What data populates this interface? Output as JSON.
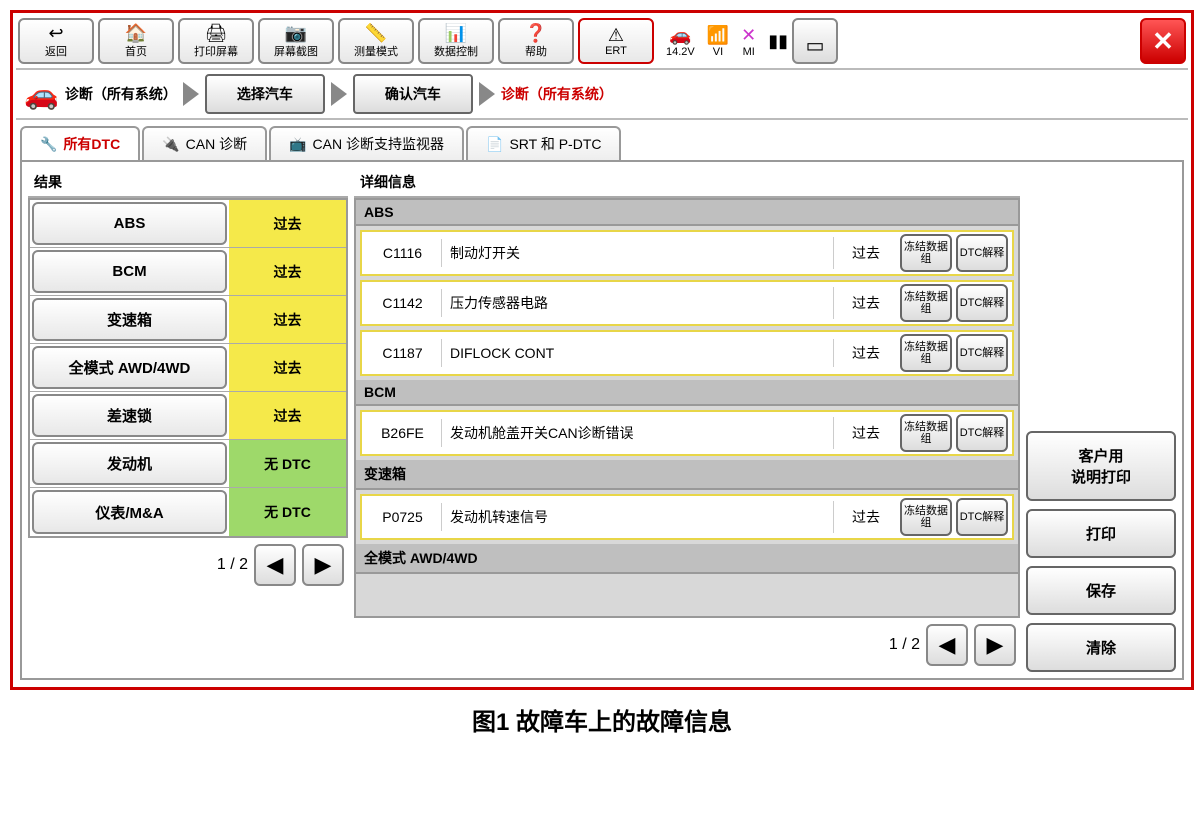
{
  "colors": {
    "frame_border": "#cc0000",
    "past_bg": "#f5e94a",
    "none_bg": "#9ed96a",
    "dtc_row_border": "#e8d648",
    "group_header_bg": "#bfbfbf"
  },
  "toolbar": [
    {
      "icon": "↩",
      "label": "返回",
      "name": "back-button"
    },
    {
      "icon": "🏠",
      "label": "首页",
      "name": "home-button"
    },
    {
      "icon": "🖨",
      "label": "打印屏幕",
      "name": "print-screen-button"
    },
    {
      "icon": "📷",
      "label": "屏幕截图",
      "name": "screenshot-button"
    },
    {
      "icon": "📏",
      "label": "测量模式",
      "name": "measure-mode-button"
    },
    {
      "icon": "📊",
      "label": "数据控制",
      "name": "data-control-button"
    },
    {
      "icon": "❓",
      "label": "帮助",
      "name": "help-button"
    },
    {
      "icon": "⚠",
      "label": "ERT",
      "name": "ert-button",
      "red": true
    }
  ],
  "status": {
    "voltage": "14.2V",
    "voltage_icon": "🚗",
    "vi_label": "VI",
    "vi_icon": "📶",
    "mi_label": "MI",
    "mi_icon": "✕",
    "mi_color": "#cc33cc",
    "battery_icon": "▮▮"
  },
  "breadcrumb": {
    "root": "诊断（所有系统）",
    "step1": "选择汽车",
    "step2": "确认汽车",
    "current": "诊断（所有系统）"
  },
  "tabs": [
    {
      "icon": "🔧",
      "label": "所有DTC",
      "active": true,
      "name": "tab-all-dtc"
    },
    {
      "icon": "🔌",
      "label": "CAN 诊断",
      "name": "tab-can-diag"
    },
    {
      "icon": "📺",
      "label": "CAN 诊断支持监视器",
      "name": "tab-can-monitor"
    },
    {
      "icon": "📄",
      "label": "SRT 和 P-DTC",
      "name": "tab-srt-pdtc"
    }
  ],
  "left_panel": {
    "title": "结果",
    "systems": [
      {
        "name": "ABS",
        "status": "过去",
        "cls": "st-past"
      },
      {
        "name": "BCM",
        "status": "过去",
        "cls": "st-past"
      },
      {
        "name": "变速箱",
        "status": "过去",
        "cls": "st-past"
      },
      {
        "name": "全模式 AWD/4WD",
        "status": "过去",
        "cls": "st-past"
      },
      {
        "name": "差速锁",
        "status": "过去",
        "cls": "st-past"
      },
      {
        "name": "发动机",
        "status": "无 DTC",
        "cls": "st-none"
      },
      {
        "name": "仪表/M&A",
        "status": "无 DTC",
        "cls": "st-none"
      }
    ],
    "pager": "1 / 2"
  },
  "detail_panel": {
    "title": "详细信息",
    "btn_freeze": "冻结数据组",
    "btn_interp": "DTC解释",
    "groups": [
      {
        "header": "ABS",
        "rows": [
          {
            "code": "C1116",
            "desc": "制动灯开关",
            "status": "过去"
          },
          {
            "code": "C1142",
            "desc": "压力传感器电路",
            "status": "过去"
          },
          {
            "code": "C1187",
            "desc": "DIFLOCK CONT",
            "status": "过去"
          }
        ]
      },
      {
        "header": "BCM",
        "rows": [
          {
            "code": "B26FE",
            "desc": "发动机舱盖开关CAN诊断错误",
            "status": "过去"
          }
        ]
      },
      {
        "header": "变速箱",
        "rows": [
          {
            "code": "P0725",
            "desc": "发动机转速信号",
            "status": "过去"
          }
        ]
      },
      {
        "header": "全模式 AWD/4WD",
        "rows": []
      }
    ],
    "pager": "1 / 2"
  },
  "side_actions": [
    {
      "label": "客户用\n说明打印",
      "name": "customer-print-button"
    },
    {
      "label": "打印",
      "name": "print-button"
    },
    {
      "label": "保存",
      "name": "save-button"
    },
    {
      "label": "清除",
      "name": "clear-button"
    }
  ],
  "caption": "图1 故障车上的故障信息"
}
